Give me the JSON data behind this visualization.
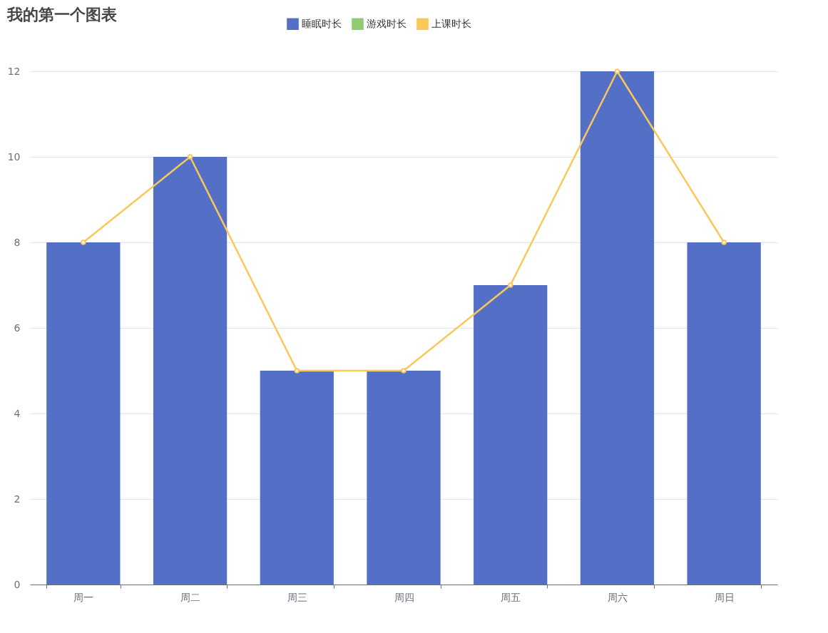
{
  "chart_data": {
    "type": "bar",
    "title": "我的第一个图表",
    "categories": [
      "周一",
      "周二",
      "周三",
      "周四",
      "周五",
      "周六",
      "周日"
    ],
    "series": [
      {
        "name": "睡眠时长",
        "color": "#5470c6",
        "values": [
          8,
          10,
          5,
          5,
          7,
          12,
          8
        ]
      },
      {
        "name": "游戏时长",
        "color": "#91cc75",
        "type": "line",
        "values": [
          null,
          null,
          null,
          null,
          null,
          null,
          null
        ]
      },
      {
        "name": "上课时长",
        "color": "#fac858",
        "type": "line",
        "values": [
          8,
          10,
          5,
          5,
          7,
          12,
          8
        ]
      }
    ],
    "ylim": [
      0,
      12
    ],
    "yticks": [
      0,
      2,
      4,
      6,
      8,
      10,
      12
    ],
    "grid": "y",
    "legend": "top",
    "marker": "circle",
    "line_style": "solid"
  }
}
